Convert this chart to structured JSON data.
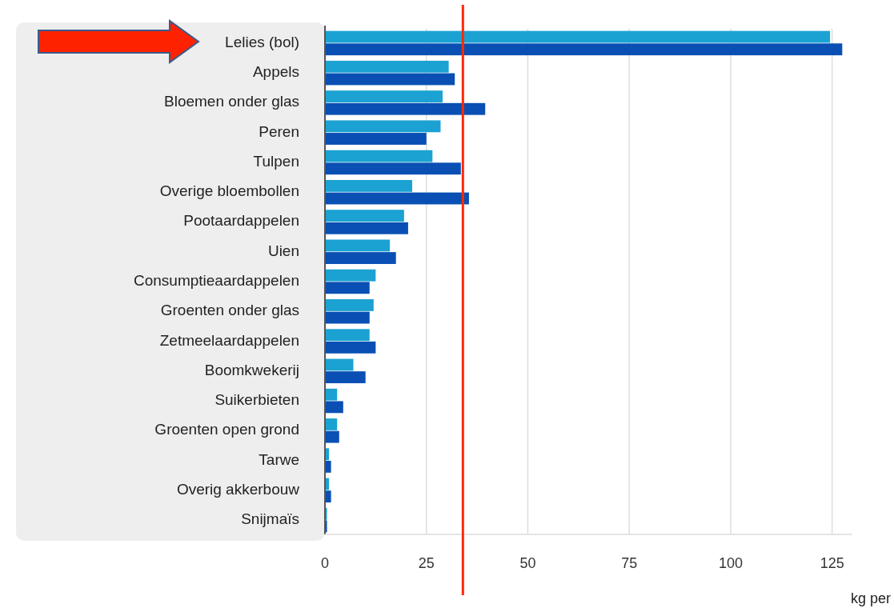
{
  "chart_data": {
    "type": "bar",
    "orientation": "horizontal",
    "xlabel": "kg per",
    "categories": [
      "Lelies (bol)",
      "Appels",
      "Bloemen onder glas",
      "Peren",
      "Tulpen",
      "Overige bloembollen",
      "Pootaardappelen",
      "Uien",
      "Consumptieaardappelen",
      "Groenten onder glas",
      "Zetmeelaardappelen",
      "Boomkwekerij",
      "Suikerbieten",
      "Groenten open grond",
      "Tarwe",
      "Overig akkerbouw",
      "Snijmaïs"
    ],
    "series": [
      {
        "color": "#1ba2d2",
        "values": [
          124.5,
          30.5,
          29,
          28.5,
          26.5,
          21.5,
          19.5,
          16,
          12.5,
          12,
          11,
          7,
          3,
          3,
          1,
          1,
          0.5
        ]
      },
      {
        "color": "#0a4fb3",
        "values": [
          127.5,
          32,
          39.5,
          25,
          33.5,
          35.5,
          20.5,
          17.5,
          11,
          11,
          12.5,
          10,
          4.5,
          3.5,
          1.5,
          1.5,
          0.5
        ]
      }
    ],
    "xlim": [
      0,
      130
    ],
    "xticks": [
      0,
      25,
      50,
      75,
      100,
      125
    ],
    "grid": "x",
    "ref_lines": [
      {
        "axis": "x",
        "value": 34,
        "color": "#ff2a00"
      }
    ]
  }
}
